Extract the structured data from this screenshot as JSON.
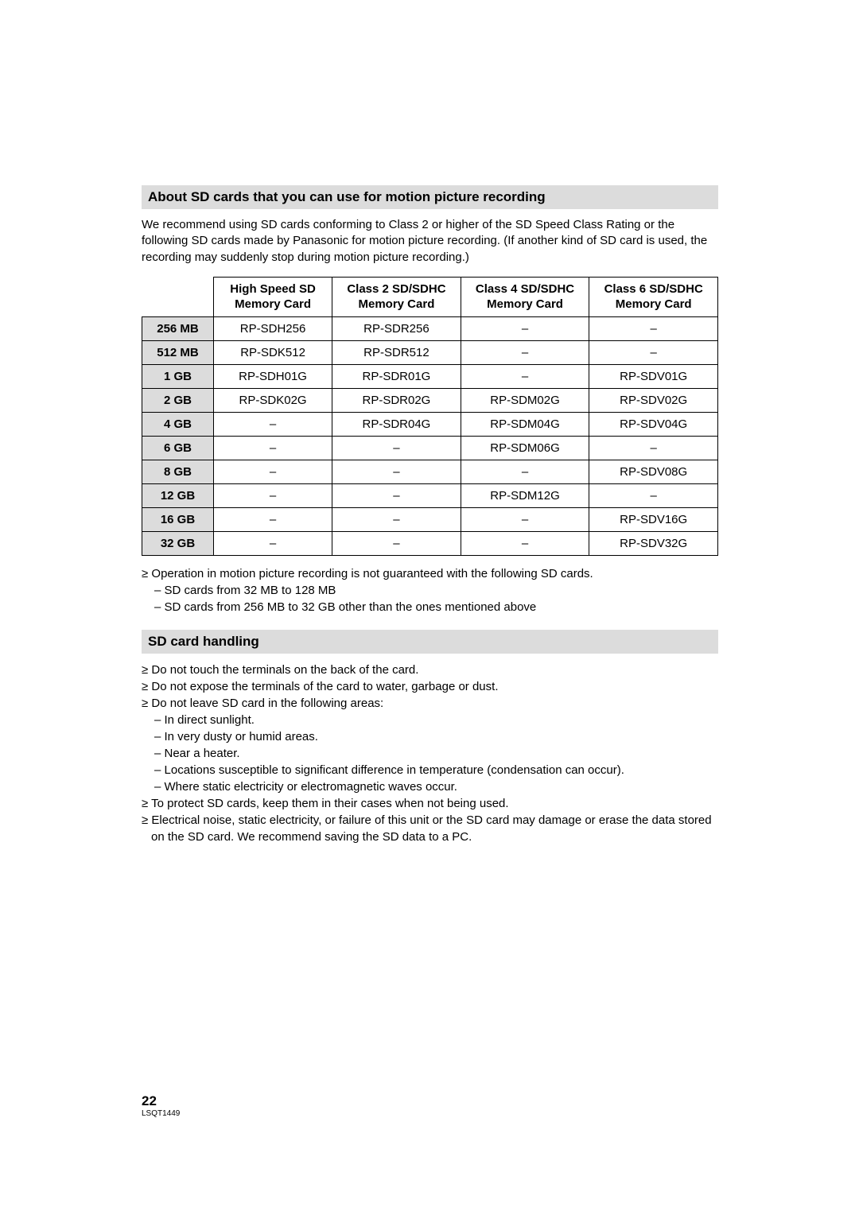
{
  "section1": {
    "heading": "About SD cards that you can use for motion picture recording",
    "intro": "We recommend using SD cards conforming to Class 2 or higher of the SD Speed Class Rating or the following SD cards made by Panasonic for motion picture recording. (If another kind of SD card is used, the recording may suddenly stop during motion picture recording.)"
  },
  "table": {
    "headers": [
      "High Speed SD Memory Card",
      "Class 2 SD/SDHC Memory Card",
      "Class 4 SD/SDHC Memory Card",
      "Class 6 SD/SDHC Memory Card"
    ],
    "rows": [
      {
        "cap": "256 MB",
        "c": [
          "RP-SDH256",
          "RP-SDR256",
          "–",
          "–"
        ]
      },
      {
        "cap": "512 MB",
        "c": [
          "RP-SDK512",
          "RP-SDR512",
          "–",
          "–"
        ]
      },
      {
        "cap": "1 GB",
        "c": [
          "RP-SDH01G",
          "RP-SDR01G",
          "–",
          "RP-SDV01G"
        ]
      },
      {
        "cap": "2 GB",
        "c": [
          "RP-SDK02G",
          "RP-SDR02G",
          "RP-SDM02G",
          "RP-SDV02G"
        ]
      },
      {
        "cap": "4 GB",
        "c": [
          "–",
          "RP-SDR04G",
          "RP-SDM04G",
          "RP-SDV04G"
        ]
      },
      {
        "cap": "6 GB",
        "c": [
          "–",
          "–",
          "RP-SDM06G",
          "–"
        ]
      },
      {
        "cap": "8 GB",
        "c": [
          "–",
          "–",
          "–",
          "RP-SDV08G"
        ]
      },
      {
        "cap": "12 GB",
        "c": [
          "–",
          "–",
          "RP-SDM12G",
          "–"
        ]
      },
      {
        "cap": "16 GB",
        "c": [
          "–",
          "–",
          "–",
          "RP-SDV16G"
        ]
      },
      {
        "cap": "32 GB",
        "c": [
          "–",
          "–",
          "–",
          "RP-SDV32G"
        ]
      }
    ]
  },
  "after_table": {
    "line1": "≥ Operation in motion picture recording is not guaranteed with the following SD cards.",
    "line2": "– SD cards from 32 MB to 128 MB",
    "line3": "– SD cards from 256 MB to 32 GB other than the ones mentioned above"
  },
  "section2": {
    "heading": "SD card handling",
    "b1": "≥ Do not touch the terminals on the back of the card.",
    "b2": "≥ Do not expose the terminals of the card to water, garbage or dust.",
    "b3": "≥ Do not leave SD card in the following areas:",
    "s1": "– In direct sunlight.",
    "s2": "– In very dusty or humid areas.",
    "s3": "– Near a heater.",
    "s4": "– Locations susceptible to significant difference in temperature (condensation can occur).",
    "s5": "– Where static electricity or electromagnetic waves occur.",
    "b4": "≥ To protect SD cards, keep them in their cases when not being used.",
    "b5": "≥ Electrical noise, static electricity, or failure of this unit or the SD card may damage or erase the data stored on the SD card. We recommend saving the SD data to a PC."
  },
  "footer": {
    "page": "22",
    "doc": "LSQT1449"
  }
}
